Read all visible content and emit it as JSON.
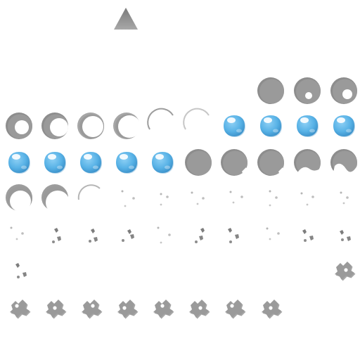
{
  "sheet": {
    "background": "#ffffff",
    "pointer_icon": "triangle-up-icon",
    "colors": {
      "hole_gray": "#9a9a9a",
      "hole_shadow": "#5c5c5c",
      "bubble_light": "#8ed0f5",
      "bubble_mid": "#58b2e6",
      "bubble_dark": "#3a8fc8",
      "bubble_shine": "#ffffff"
    },
    "frames": [
      {
        "icon": "hole-gray-icon"
      },
      {
        "icon": "hole-with-dot-icon"
      },
      {
        "icon": "hole-with-dot-icon"
      },
      {
        "icon": "hole-opening-icon"
      },
      {
        "icon": "hole-opening-icon"
      },
      {
        "icon": "hole-ring-icon"
      },
      {
        "icon": "hole-ring-icon"
      },
      {
        "icon": "hole-ring-faint-icon"
      },
      {
        "icon": "hole-ring-faint-icon"
      },
      {
        "icon": "blue-bubble-icon"
      },
      {
        "icon": "blue-bubble-icon"
      },
      {
        "icon": "blue-bubble-icon"
      },
      {
        "icon": "blue-bubble-icon"
      },
      {
        "icon": "blue-bubble-icon"
      },
      {
        "icon": "blue-bubble-icon"
      },
      {
        "icon": "blue-bubble-icon"
      },
      {
        "icon": "blue-bubble-icon"
      },
      {
        "icon": "blue-bubble-icon"
      },
      {
        "icon": "hole-gray-icon"
      },
      {
        "icon": "hole-chipped-icon"
      },
      {
        "icon": "hole-chipped-icon"
      },
      {
        "icon": "hole-breaking-icon"
      },
      {
        "icon": "hole-breaking-icon"
      },
      {
        "icon": "hole-arc-icon"
      },
      {
        "icon": "hole-arc-icon"
      },
      {
        "icon": "hole-arc-faint-icon"
      },
      {
        "icon": "debris-faint-icon"
      },
      {
        "icon": "debris-faint-icon"
      },
      {
        "icon": "debris-faint-icon"
      },
      {
        "icon": "debris-faint-icon"
      },
      {
        "icon": "debris-faint-icon"
      },
      {
        "icon": "debris-faint-icon"
      },
      {
        "icon": "debris-faint-icon"
      },
      {
        "icon": "debris-faint-icon"
      },
      {
        "icon": "debris-small-icon"
      },
      {
        "icon": "debris-small-icon"
      },
      {
        "icon": "debris-small-icon"
      },
      {
        "icon": "debris-faint-icon"
      },
      {
        "icon": "debris-small-icon"
      },
      {
        "icon": "debris-small-icon"
      },
      {
        "icon": "debris-faint-icon"
      },
      {
        "icon": "debris-small-icon"
      },
      {
        "icon": "debris-small-icon"
      },
      {
        "icon": "debris-small-icon"
      },
      {
        "icon": "splat-gray-icon"
      },
      {
        "icon": "splat-gray-icon"
      },
      {
        "icon": "splat-gray-icon"
      },
      {
        "icon": "splat-gray-icon"
      },
      {
        "icon": "splat-gray-icon"
      },
      {
        "icon": "splat-gray-icon"
      },
      {
        "icon": "splat-gray-icon"
      },
      {
        "icon": "splat-gray-icon"
      },
      {
        "icon": "splat-gray-icon"
      }
    ]
  }
}
